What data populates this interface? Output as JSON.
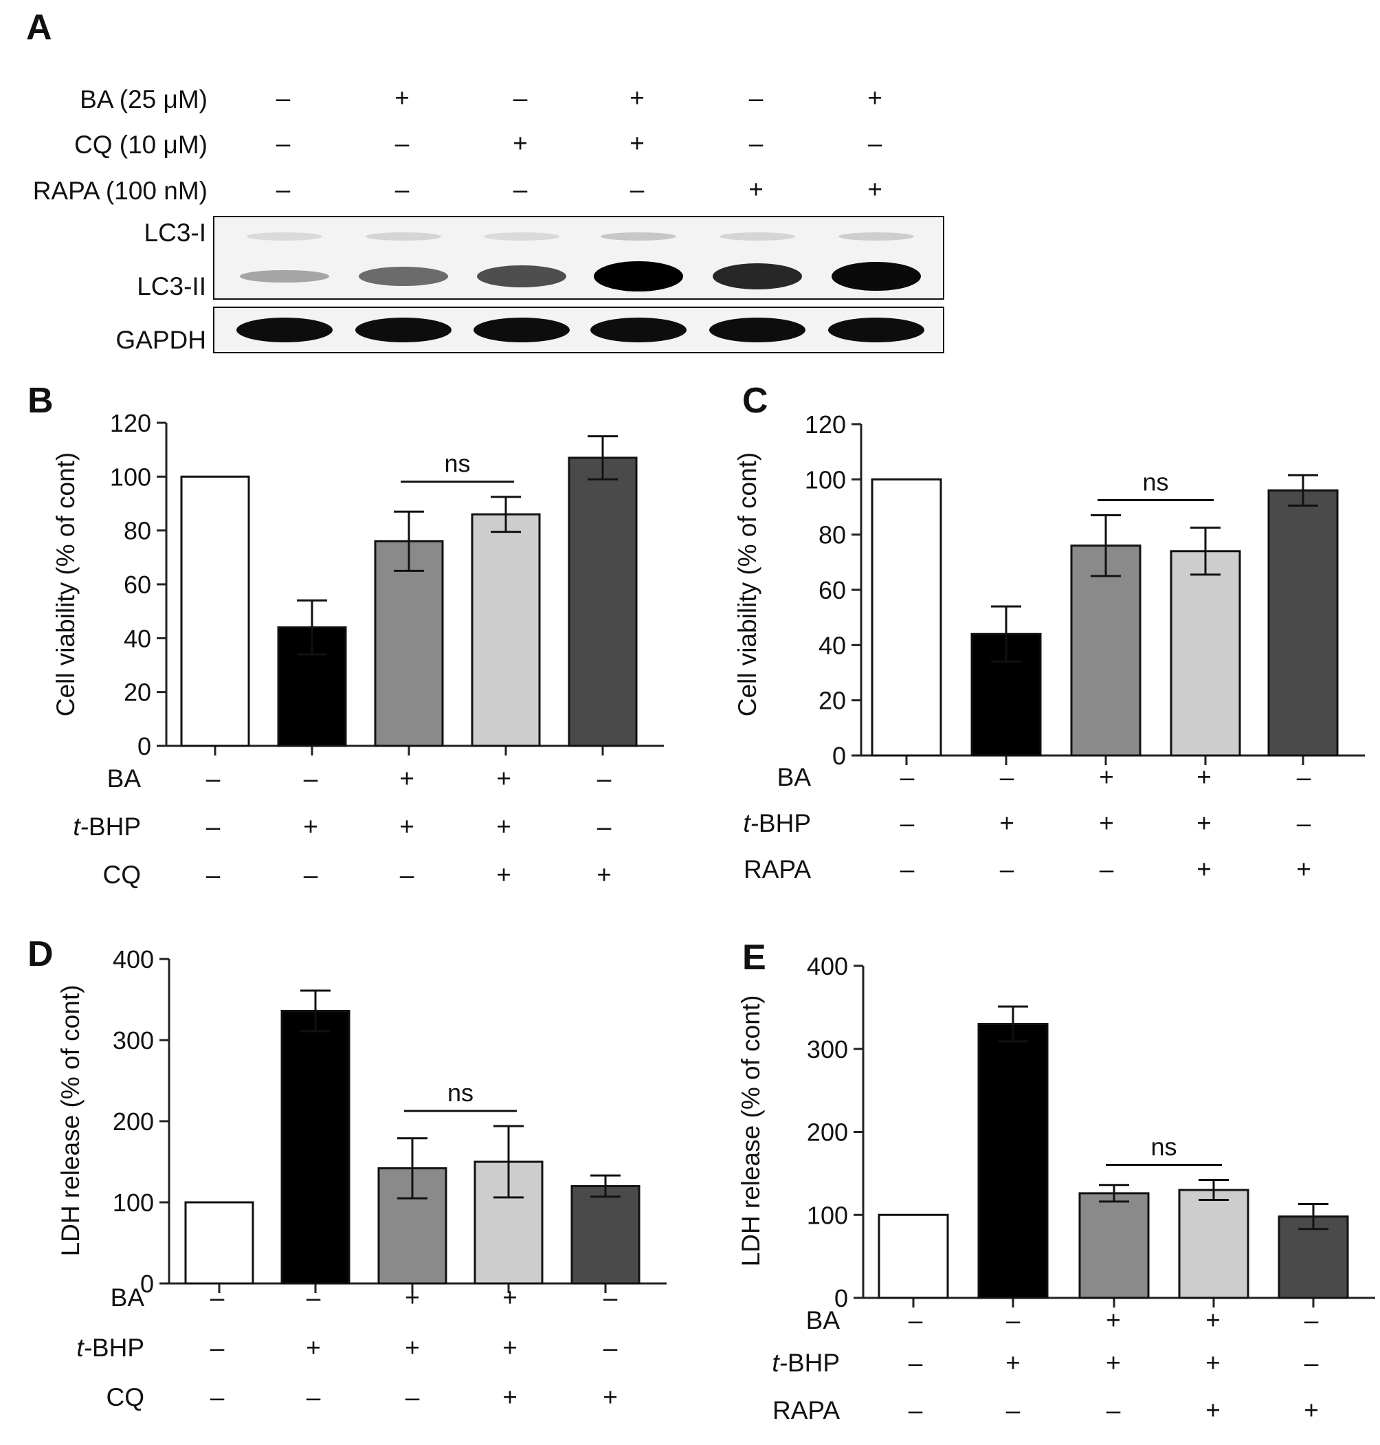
{
  "panelA": {
    "letter": "A",
    "treatment_rows": [
      {
        "label": "BA (25 μM)",
        "signs": [
          "–",
          "+",
          "–",
          "+",
          "–",
          "+"
        ]
      },
      {
        "label": "CQ (10 μM)",
        "signs": [
          "–",
          "–",
          "+",
          "+",
          "–",
          "–"
        ]
      },
      {
        "label": "RAPA (100 nM)",
        "signs": [
          "–",
          "–",
          "–",
          "–",
          "+",
          "+"
        ]
      }
    ],
    "blot_labels": {
      "lc3i": "LC3-I",
      "lc3ii": "LC3-II",
      "gapdh": "GAPDH"
    },
    "lc3ii_intensity": [
      0.15,
      0.45,
      0.6,
      1.0,
      0.8,
      0.95
    ],
    "lc3i_intensity": [
      0.1,
      0.12,
      0.1,
      0.18,
      0.12,
      0.15
    ],
    "gapdh_intensity": [
      1,
      1,
      1,
      1,
      1,
      1
    ]
  },
  "panels": [
    {
      "letter": "B",
      "rows": [
        {
          "label": "BA",
          "italic_prefix": "",
          "signs": [
            "–",
            "–",
            "+",
            "+",
            "–"
          ]
        },
        {
          "label": "BHP",
          "italic_prefix": "t-",
          "signs": [
            "–",
            "+",
            "+",
            "+",
            "–"
          ]
        },
        {
          "label": "CQ",
          "italic_prefix": "",
          "signs": [
            "–",
            "–",
            "–",
            "+",
            "+"
          ]
        }
      ]
    },
    {
      "letter": "C",
      "rows": [
        {
          "label": "BA",
          "italic_prefix": "",
          "signs": [
            "–",
            "–",
            "+",
            "+",
            "–"
          ]
        },
        {
          "label": "BHP",
          "italic_prefix": "t-",
          "signs": [
            "–",
            "+",
            "+",
            "+",
            "–"
          ]
        },
        {
          "label": "RAPA",
          "italic_prefix": "",
          "signs": [
            "–",
            "–",
            "–",
            "+",
            "+"
          ]
        }
      ]
    },
    {
      "letter": "D",
      "rows": [
        {
          "label": "BA",
          "italic_prefix": "",
          "signs": [
            "–",
            "–",
            "+",
            "+",
            "–"
          ]
        },
        {
          "label": "BHP",
          "italic_prefix": "t-",
          "signs": [
            "–",
            "+",
            "+",
            "+",
            "–"
          ]
        },
        {
          "label": "CQ",
          "italic_prefix": "",
          "signs": [
            "–",
            "–",
            "–",
            "+",
            "+"
          ]
        }
      ]
    },
    {
      "letter": "E",
      "rows": [
        {
          "label": "BA",
          "italic_prefix": "",
          "signs": [
            "–",
            "–",
            "+",
            "+",
            "–"
          ]
        },
        {
          "label": "BHP",
          "italic_prefix": "t-",
          "signs": [
            "–",
            "+",
            "+",
            "+",
            "–"
          ]
        },
        {
          "label": "RAPA",
          "italic_prefix": "",
          "signs": [
            "–",
            "–",
            "–",
            "+",
            "+"
          ]
        }
      ]
    }
  ],
  "chart_data": [
    {
      "panel": "B",
      "type": "bar",
      "ylabel": "Cell viability (% of cont)",
      "ylim": [
        0,
        120
      ],
      "yticks": [
        0,
        20,
        40,
        60,
        80,
        100,
        120
      ],
      "values": [
        100,
        44,
        76,
        86,
        107
      ],
      "errors": [
        0,
        10,
        11,
        6.5,
        8
      ],
      "colors": [
        "#ffffff",
        "#000000",
        "#8a8a8a",
        "#cdcdcd",
        "#4a4a4a"
      ],
      "annotation": {
        "text": "ns",
        "between": [
          2,
          3
        ]
      }
    },
    {
      "panel": "C",
      "type": "bar",
      "ylabel": "Cell viability (% of cont)",
      "ylim": [
        0,
        120
      ],
      "yticks": [
        0,
        20,
        40,
        60,
        80,
        100,
        120
      ],
      "values": [
        100,
        44,
        76,
        74,
        96
      ],
      "errors": [
        0,
        10,
        11,
        8.5,
        5.5
      ],
      "colors": [
        "#ffffff",
        "#000000",
        "#8a8a8a",
        "#cdcdcd",
        "#4a4a4a"
      ],
      "annotation": {
        "text": "ns",
        "between": [
          2,
          3
        ]
      }
    },
    {
      "panel": "D",
      "type": "bar",
      "ylabel": "LDH release (% of cont)",
      "ylim": [
        0,
        400
      ],
      "yticks": [
        0,
        100,
        200,
        300,
        400
      ],
      "values": [
        100,
        336,
        142,
        150,
        120
      ],
      "errors": [
        0,
        25,
        37,
        44,
        13
      ],
      "colors": [
        "#ffffff",
        "#000000",
        "#8a8a8a",
        "#cdcdcd",
        "#4a4a4a"
      ],
      "annotation": {
        "text": "ns",
        "between": [
          2,
          3
        ]
      }
    },
    {
      "panel": "E",
      "type": "bar",
      "ylabel": "LDH release (% of cont)",
      "ylim": [
        0,
        400
      ],
      "yticks": [
        0,
        100,
        200,
        300,
        400
      ],
      "values": [
        100,
        330,
        126,
        130,
        98
      ],
      "errors": [
        0,
        21,
        10,
        12,
        15
      ],
      "colors": [
        "#ffffff",
        "#000000",
        "#8a8a8a",
        "#cdcdcd",
        "#4a4a4a"
      ],
      "annotation": {
        "text": "ns",
        "between": [
          2,
          3
        ]
      }
    }
  ]
}
